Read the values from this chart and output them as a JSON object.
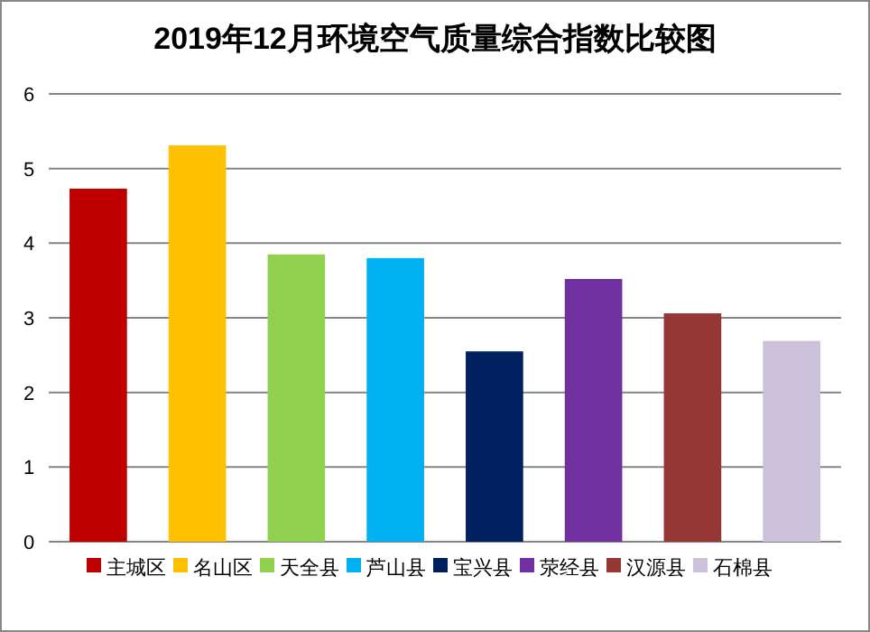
{
  "chart_data": {
    "type": "bar",
    "title": "2019年12月环境空气质量综合指数比较图",
    "categories": [
      null
    ],
    "series": [
      {
        "name": "主城区",
        "color": "#c00000",
        "values": [
          4.73
        ]
      },
      {
        "name": "名山区",
        "color": "#ffc000",
        "values": [
          5.31
        ]
      },
      {
        "name": "天全县",
        "color": "#92d050",
        "values": [
          3.85
        ]
      },
      {
        "name": "芦山县",
        "color": "#00b0f0",
        "values": [
          3.8
        ]
      },
      {
        "name": "宝兴县",
        "color": "#002060",
        "values": [
          2.55
        ]
      },
      {
        "name": "荥经县",
        "color": "#7030a0",
        "values": [
          3.52
        ]
      },
      {
        "name": "汉源县",
        "color": "#953735",
        "values": [
          3.06
        ]
      },
      {
        "name": "石棉县",
        "color": "#ccc1da",
        "values": [
          2.69
        ]
      }
    ],
    "ylim": [
      0,
      6
    ],
    "yticks": [
      0,
      1,
      2,
      3,
      4,
      5,
      6
    ],
    "grid": "y",
    "legend": "bottom"
  }
}
